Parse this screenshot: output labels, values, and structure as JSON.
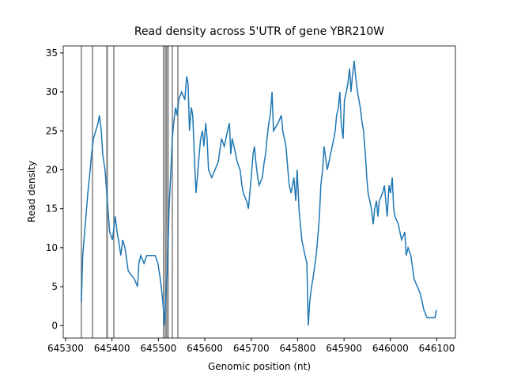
{
  "chart_data": {
    "type": "line",
    "title": "Read density across 5'UTR of gene YBR210W",
    "x_label": "Genomic position (nt)",
    "y_label": "Read density",
    "xlim": [
      645295,
      646140
    ],
    "ylim": [
      -1.6,
      35.9
    ],
    "xticks": [
      645300,
      645400,
      645500,
      645600,
      645700,
      645800,
      645900,
      646000,
      646100
    ],
    "yticks": [
      0,
      5,
      10,
      15,
      20,
      25,
      30,
      35
    ],
    "vlines": [
      645334,
      645358,
      645389,
      645390,
      645404,
      645511,
      645515,
      645518,
      645521,
      645530,
      645542
    ],
    "vline_color": "#7f7f7f",
    "x": [
      645334,
      645337,
      645348,
      645353,
      645356,
      645360,
      645370,
      645373,
      645377,
      645380,
      645385,
      645390,
      645395,
      645401,
      645407,
      645411,
      645414,
      645419,
      645423,
      645428,
      645435,
      645448,
      645455,
      645458,
      645462,
      645469,
      645475,
      645493,
      645499,
      645504,
      645508,
      645511,
      645513,
      645516,
      645520,
      645523,
      645527,
      645530,
      645533,
      645537,
      645540,
      645544,
      645550,
      645557,
      645561,
      645564,
      645567,
      645571,
      645574,
      645578,
      645581,
      645584,
      645588,
      645591,
      645595,
      645598,
      645602,
      645605,
      645608,
      645615,
      645622,
      645629,
      645636,
      645642,
      645649,
      645653,
      645656,
      645659,
      645663,
      645670,
      645676,
      645680,
      645683,
      645690,
      645694,
      645697,
      645700,
      645704,
      645707,
      645710,
      645714,
      645717,
      645724,
      645728,
      645731,
      645734,
      645738,
      645741,
      645745,
      645748,
      645758,
      645765,
      645768,
      645775,
      645779,
      645782,
      645786,
      645792,
      645796,
      645799,
      645803,
      645806,
      645809,
      645816,
      645820,
      645823,
      645826,
      645830,
      645833,
      645840,
      645843,
      645847,
      645850,
      645854,
      645857,
      645864,
      645871,
      645878,
      645881,
      645884,
      645888,
      645891,
      645894,
      645898,
      645901,
      645905,
      645908,
      645912,
      645915,
      645918,
      645922,
      645925,
      645929,
      645935,
      645939,
      645942,
      645946,
      645949,
      645952,
      645959,
      645963,
      645966,
      645970,
      645973,
      645976,
      645983,
      645987,
      645990,
      645993,
      645997,
      646000,
      646004,
      646007,
      646010,
      646017,
      646024,
      646031,
      646034,
      646038,
      646044,
      646051,
      646058,
      646065,
      646072,
      646079,
      646096,
      646099
    ],
    "series": [
      {
        "name": "Read density",
        "color": "#1f77b4",
        "values": [
          3,
          9,
          17,
          20,
          22,
          24,
          26,
          27,
          25,
          22,
          20,
          16,
          12,
          11,
          14,
          12,
          11,
          9,
          11,
          10,
          7,
          6,
          5,
          8,
          9,
          8,
          9,
          9,
          8,
          6,
          4,
          2,
          0,
          4,
          8,
          15,
          20,
          24,
          26,
          28,
          27,
          29,
          30,
          29,
          32,
          31,
          25,
          28,
          27,
          21,
          17,
          19,
          22,
          24,
          25,
          23,
          26,
          24,
          20,
          19,
          20,
          21,
          24,
          23,
          25,
          26,
          22,
          24,
          23,
          21,
          20,
          18,
          17,
          16,
          15,
          17,
          19,
          22,
          23,
          21,
          19,
          18,
          19,
          21,
          22,
          24,
          26,
          27,
          30,
          25,
          26,
          27,
          25,
          23,
          20,
          18,
          17,
          19,
          16,
          20,
          15,
          13,
          11,
          9,
          8,
          0,
          3,
          5,
          6,
          9,
          11,
          14,
          18,
          20,
          23,
          20,
          22,
          24,
          25,
          27,
          28,
          30,
          26,
          24,
          29,
          30,
          31,
          33,
          30,
          32,
          34,
          32,
          30,
          28,
          26,
          25,
          22,
          19,
          17,
          15,
          13,
          15,
          16,
          14,
          16,
          17,
          18,
          16,
          14,
          18,
          17,
          19,
          15,
          14,
          13,
          11,
          12,
          9,
          10,
          9,
          6,
          5,
          4,
          2,
          1,
          1,
          2
        ]
      }
    ]
  }
}
